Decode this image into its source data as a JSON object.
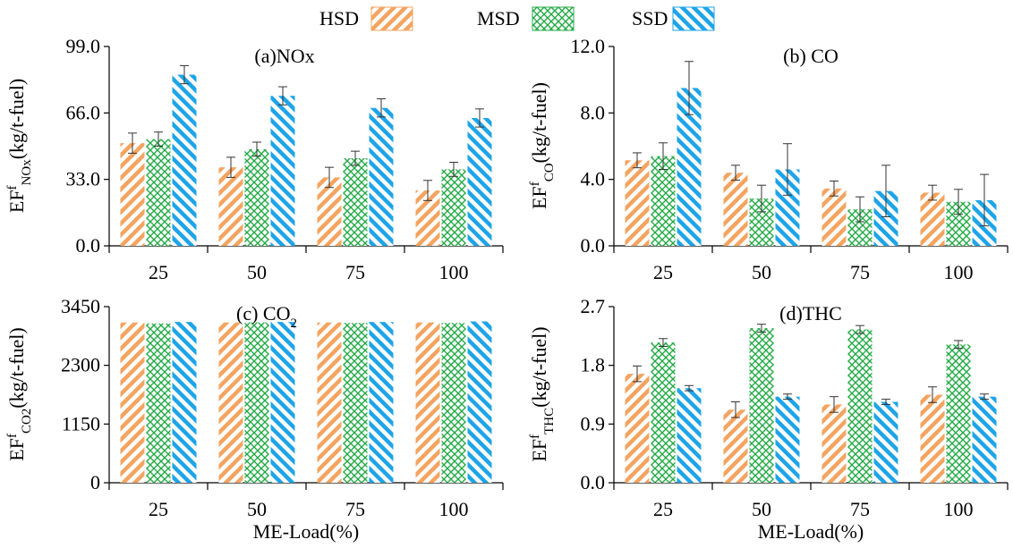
{
  "legend": {
    "items": [
      {
        "label": "HSD",
        "pattern": "hatch-hsd"
      },
      {
        "label": "MSD",
        "pattern": "hatch-msd"
      },
      {
        "label": "SSD",
        "pattern": "hatch-ssd"
      }
    ]
  },
  "colors": {
    "HSD": "#f4a460",
    "MSD": "#22aa44",
    "SSD": "#1ea4e8"
  },
  "chart_data": [
    {
      "type": "bar",
      "title": "(a)NOx",
      "ylabel_main": "EF",
      "ylabel_sup": "f",
      "ylabel_sub": "NOx",
      "ylabel_unit": "(kg/t-fuel)",
      "categories": [
        "25",
        "50",
        "75",
        "100"
      ],
      "ylim": [
        0,
        99
      ],
      "yticks": [
        "0.0",
        "33.0",
        "66.0",
        "99.0"
      ],
      "series": [
        {
          "name": "HSD",
          "values": [
            51,
            39,
            34,
            27.5
          ],
          "errors": [
            5,
            5,
            5,
            5
          ]
        },
        {
          "name": "MSD",
          "values": [
            53,
            48,
            43.5,
            38
          ],
          "errors": [
            3.5,
            3.5,
            3.5,
            3.5
          ]
        },
        {
          "name": "SSD",
          "values": [
            85,
            74.5,
            68.5,
            63.5
          ],
          "errors": [
            4.5,
            4.5,
            4.5,
            4.5
          ]
        }
      ]
    },
    {
      "type": "bar",
      "title": "(b) CO",
      "ylabel_main": "EF",
      "ylabel_sup": "f",
      "ylabel_sub": "CO",
      "ylabel_unit": "(kg/t-fuel)",
      "categories": [
        "25",
        "50",
        "75",
        "100"
      ],
      "ylim": [
        0,
        12
      ],
      "yticks": [
        "0.0",
        "4.0",
        "8.0",
        "12.0"
      ],
      "series": [
        {
          "name": "HSD",
          "values": [
            5.15,
            4.4,
            3.45,
            3.2
          ],
          "errors": [
            0.45,
            0.45,
            0.45,
            0.45
          ]
        },
        {
          "name": "MSD",
          "values": [
            5.4,
            2.85,
            2.2,
            2.65
          ],
          "errors": [
            0.8,
            0.8,
            0.75,
            0.75
          ]
        },
        {
          "name": "SSD",
          "values": [
            9.5,
            4.6,
            3.3,
            2.75
          ],
          "errors": [
            1.6,
            1.55,
            1.55,
            1.55
          ]
        }
      ]
    },
    {
      "type": "bar",
      "title": "(c) CO",
      "title_sub": "2",
      "ylabel_main": "EF",
      "ylabel_sup": "f",
      "ylabel_sub": "CO2",
      "ylabel_unit": "(kg/t-fuel)",
      "xlabel": "ME-Load(%)",
      "categories": [
        "25",
        "50",
        "75",
        "100"
      ],
      "ylim": [
        0,
        3450
      ],
      "yticks": [
        "0",
        "1150",
        "2300",
        "3450"
      ],
      "series": [
        {
          "name": "HSD",
          "values": [
            3140,
            3140,
            3140,
            3140
          ]
        },
        {
          "name": "MSD",
          "values": [
            3120,
            3140,
            3130,
            3130
          ]
        },
        {
          "name": "SSD",
          "values": [
            3150,
            3150,
            3150,
            3160
          ]
        }
      ]
    },
    {
      "type": "bar",
      "title": "(d)THC",
      "ylabel_main": "EF",
      "ylabel_sup": "f",
      "ylabel_sub": "THC",
      "ylabel_unit": "(kg/t-fuel)",
      "xlabel": "ME-Load(%)",
      "categories": [
        "25",
        "50",
        "75",
        "100"
      ],
      "ylim": [
        0,
        2.7
      ],
      "yticks": [
        "0.0",
        "0.9",
        "1.8",
        "2.7"
      ],
      "series": [
        {
          "name": "HSD",
          "values": [
            1.67,
            1.12,
            1.2,
            1.35
          ],
          "errors": [
            0.12,
            0.12,
            0.12,
            0.12
          ]
        },
        {
          "name": "MSD",
          "values": [
            2.15,
            2.37,
            2.35,
            2.12
          ],
          "errors": [
            0.06,
            0.06,
            0.06,
            0.06
          ]
        },
        {
          "name": "SSD",
          "values": [
            1.45,
            1.32,
            1.24,
            1.32
          ],
          "errors": [
            0.04,
            0.04,
            0.04,
            0.04
          ]
        }
      ]
    }
  ]
}
